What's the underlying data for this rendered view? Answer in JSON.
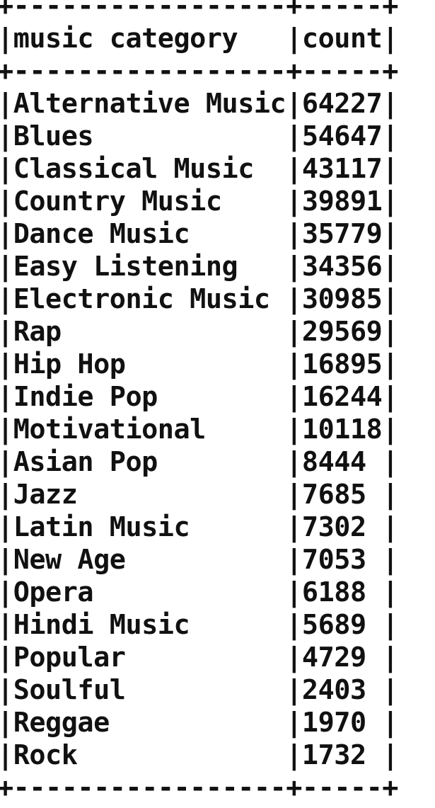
{
  "table": {
    "columns": [
      "music category",
      "count"
    ],
    "rows": [
      {
        "category": "Alternative Music",
        "count": "64227"
      },
      {
        "category": "Blues",
        "count": "54647"
      },
      {
        "category": "Classical Music",
        "count": "43117"
      },
      {
        "category": "Country Music",
        "count": "39891"
      },
      {
        "category": "Dance Music",
        "count": "35779"
      },
      {
        "category": "Easy Listening",
        "count": "34356"
      },
      {
        "category": "Electronic Music",
        "count": "30985"
      },
      {
        "category": "Rap",
        "count": "29569"
      },
      {
        "category": "Hip Hop",
        "count": "16895"
      },
      {
        "category": "Indie Pop",
        "count": "16244"
      },
      {
        "category": "Motivational",
        "count": "10118"
      },
      {
        "category": "Asian Pop",
        "count": "8444"
      },
      {
        "category": "Jazz",
        "count": "7685"
      },
      {
        "category": "Latin Music",
        "count": "7302"
      },
      {
        "category": "New Age",
        "count": "7053"
      },
      {
        "category": "Opera",
        "count": "6188"
      },
      {
        "category": "Hindi Music",
        "count": "5689"
      },
      {
        "category": "Popular",
        "count": "4729"
      },
      {
        "category": "Soulful",
        "count": "2403"
      },
      {
        "category": "Reggae",
        "count": "1970"
      },
      {
        "category": "Rock",
        "count": "1732"
      }
    ]
  }
}
